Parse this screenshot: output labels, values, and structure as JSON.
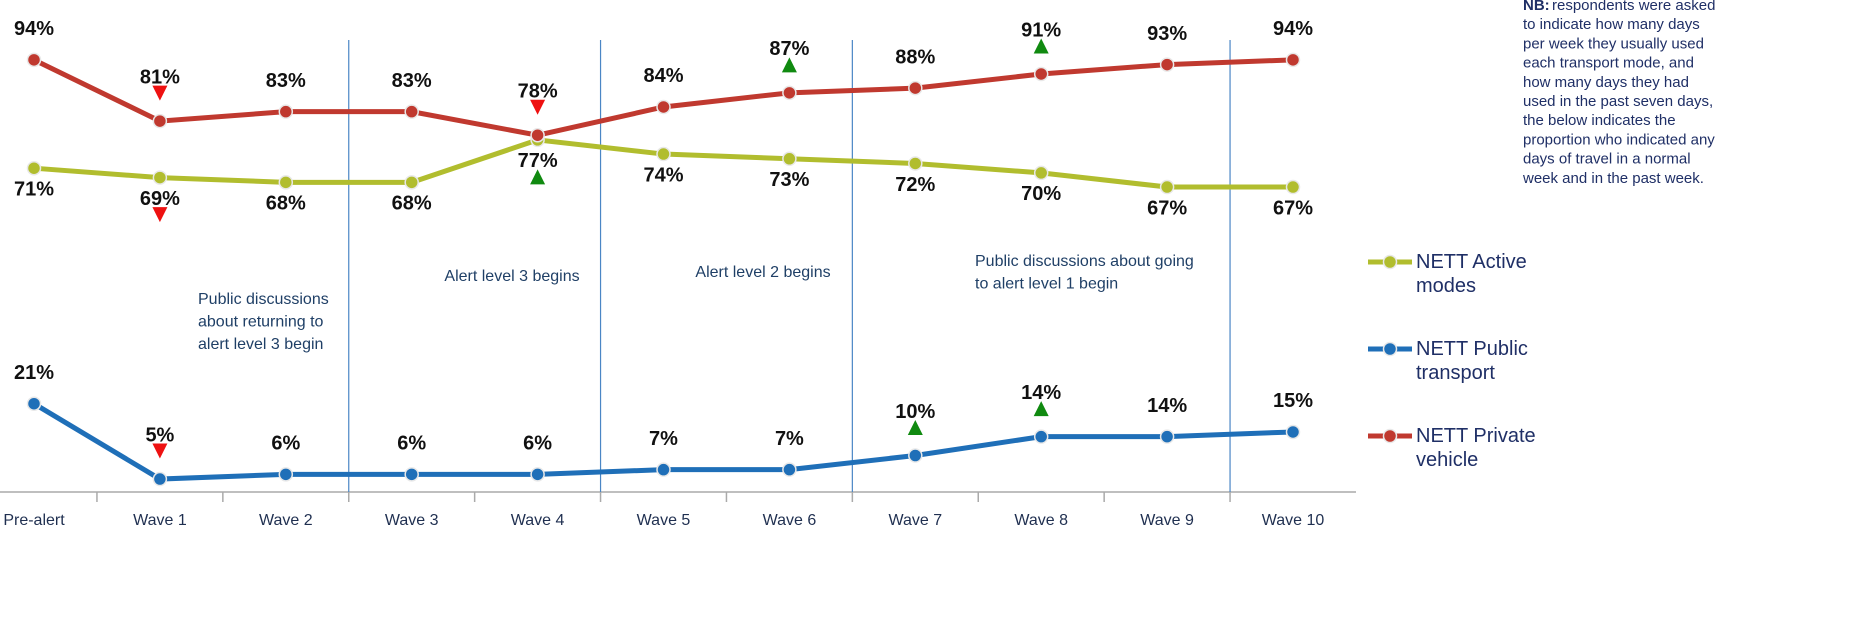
{
  "chart_data": {
    "type": "line",
    "categories": [
      "Pre-alert",
      "Wave 1",
      "Wave 2",
      "Wave 3",
      "Wave 4",
      "Wave 5",
      "Wave 6",
      "Wave 7",
      "Wave 8",
      "Wave 9",
      "Wave 10"
    ],
    "ylim": [
      0,
      100
    ],
    "legend": "right",
    "series": [
      {
        "name": "NETT Active modes",
        "color": "#b1bd2e",
        "values": [
          71,
          69,
          68,
          68,
          77,
          74,
          73,
          72,
          70,
          67,
          67
        ],
        "value_labels": [
          "71%",
          "69%",
          "68%",
          "68%",
          "77%",
          "74%",
          "73%",
          "72%",
          "70%",
          "67%",
          "67%"
        ],
        "significance": [
          null,
          "down",
          null,
          null,
          "up",
          null,
          null,
          null,
          null,
          null,
          null
        ]
      },
      {
        "name": "NETT Public transport",
        "color": "#1f6fb8",
        "values": [
          21,
          5,
          6,
          6,
          6,
          7,
          7,
          10,
          14,
          14,
          15
        ],
        "value_labels": [
          "21%",
          "5%",
          "6%",
          "6%",
          "6%",
          "7%",
          "7%",
          "10%",
          "14%",
          "14%",
          "15%"
        ],
        "significance": [
          null,
          "down",
          null,
          null,
          null,
          null,
          null,
          "up",
          "up",
          null,
          null
        ]
      },
      {
        "name": "NETT Private vehicle",
        "color": "#c0392f",
        "values": [
          94,
          81,
          83,
          83,
          78,
          84,
          87,
          88,
          91,
          93,
          94
        ],
        "value_labels": [
          "94%",
          "81%",
          "83%",
          "83%",
          "78%",
          "84%",
          "87%",
          "88%",
          "91%",
          "93%",
          "94%"
        ],
        "significance": [
          null,
          "down",
          null,
          null,
          "down",
          null,
          "up",
          null,
          "up",
          null,
          null
        ]
      }
    ],
    "annotations": [
      {
        "lines": [
          "Public discussions",
          "about returning to",
          "alert level 3 begin"
        ]
      },
      {
        "lines": [
          "Alert level 3 begins"
        ]
      },
      {
        "lines": [
          "Alert level 2 begins"
        ]
      },
      {
        "lines": [
          "Public discussions about going",
          "to alert level 1 begin"
        ]
      }
    ],
    "note": {
      "label": "NB:",
      "lines": [
        "respondents were asked",
        "to indicate how many days",
        "per week they usually used",
        "each transport mode, and",
        "how many days they had",
        "used in the past seven days,",
        "the below indicates the",
        "proportion who indicated any",
        "days of travel in a normal",
        "week and in the past week."
      ]
    }
  }
}
